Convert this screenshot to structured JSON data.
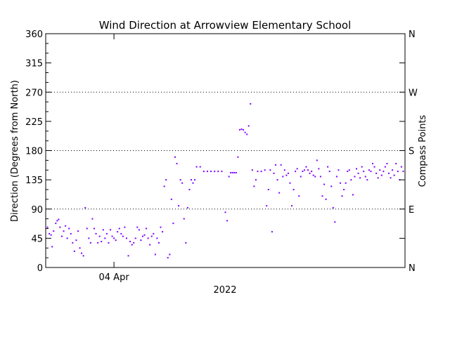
{
  "chart_data": {
    "type": "scatter",
    "title": "Wind Direction at Arrowview Elementary School",
    "ylabel": "Direction (Degrees from North)",
    "y2label": "Compass Points",
    "xlabel": "2022",
    "ylim": [
      0,
      360
    ],
    "yticks": [
      "0",
      "45",
      "90",
      "135",
      "180",
      "225",
      "270",
      "315",
      "360"
    ],
    "y2ticks": [
      {
        "label": "N",
        "value": 0
      },
      {
        "label": "E",
        "value": 90
      },
      {
        "label": "S",
        "value": 180
      },
      {
        "label": "W",
        "value": 270
      },
      {
        "label": "N",
        "value": 360
      }
    ],
    "xticks": [
      {
        "label": "04 Apr",
        "t": 0.19
      }
    ],
    "grid": "dotted lines at E, S, W",
    "series_color": "#8000ff",
    "points": [
      [
        0.005,
        62
      ],
      [
        0.01,
        52
      ],
      [
        0.015,
        50
      ],
      [
        0.018,
        32
      ],
      [
        0.022,
        56
      ],
      [
        0.028,
        68
      ],
      [
        0.032,
        72
      ],
      [
        0.036,
        74
      ],
      [
        0.04,
        62
      ],
      [
        0.045,
        48
      ],
      [
        0.05,
        56
      ],
      [
        0.055,
        64
      ],
      [
        0.06,
        45
      ],
      [
        0.065,
        60
      ],
      [
        0.07,
        52
      ],
      [
        0.075,
        38
      ],
      [
        0.08,
        25
      ],
      [
        0.085,
        42
      ],
      [
        0.09,
        56
      ],
      [
        0.095,
        30
      ],
      [
        0.1,
        22
      ],
      [
        0.105,
        18
      ],
      [
        0.11,
        92
      ],
      [
        0.115,
        60
      ],
      [
        0.12,
        45
      ],
      [
        0.125,
        38
      ],
      [
        0.13,
        75
      ],
      [
        0.135,
        60
      ],
      [
        0.14,
        52
      ],
      [
        0.145,
        38
      ],
      [
        0.15,
        48
      ],
      [
        0.155,
        40
      ],
      [
        0.16,
        58
      ],
      [
        0.165,
        45
      ],
      [
        0.17,
        52
      ],
      [
        0.175,
        38
      ],
      [
        0.18,
        58
      ],
      [
        0.185,
        48
      ],
      [
        0.19,
        45
      ],
      [
        0.195,
        42
      ],
      [
        0.2,
        55
      ],
      [
        0.205,
        60
      ],
      [
        0.21,
        52
      ],
      [
        0.215,
        48
      ],
      [
        0.22,
        62
      ],
      [
        0.225,
        45
      ],
      [
        0.23,
        18
      ],
      [
        0.235,
        40
      ],
      [
        0.24,
        35
      ],
      [
        0.245,
        38
      ],
      [
        0.25,
        45
      ],
      [
        0.255,
        62
      ],
      [
        0.26,
        58
      ],
      [
        0.265,
        42
      ],
      [
        0.27,
        48
      ],
      [
        0.275,
        50
      ],
      [
        0.28,
        60
      ],
      [
        0.285,
        45
      ],
      [
        0.29,
        35
      ],
      [
        0.295,
        48
      ],
      [
        0.3,
        52
      ],
      [
        0.305,
        20
      ],
      [
        0.31,
        45
      ],
      [
        0.315,
        38
      ],
      [
        0.32,
        62
      ],
      [
        0.325,
        55
      ],
      [
        0.33,
        125
      ],
      [
        0.335,
        135
      ],
      [
        0.34,
        15
      ],
      [
        0.345,
        20
      ],
      [
        0.35,
        105
      ],
      [
        0.355,
        68
      ],
      [
        0.36,
        170
      ],
      [
        0.365,
        160
      ],
      [
        0.37,
        95
      ],
      [
        0.375,
        135
      ],
      [
        0.38,
        130
      ],
      [
        0.385,
        75
      ],
      [
        0.39,
        38
      ],
      [
        0.395,
        92
      ],
      [
        0.4,
        120
      ],
      [
        0.405,
        135
      ],
      [
        0.41,
        130
      ],
      [
        0.415,
        135
      ],
      [
        0.42,
        155
      ],
      [
        0.43,
        155
      ],
      [
        0.44,
        148
      ],
      [
        0.45,
        148
      ],
      [
        0.46,
        148
      ],
      [
        0.47,
        148
      ],
      [
        0.48,
        148
      ],
      [
        0.49,
        148
      ],
      [
        0.5,
        85
      ],
      [
        0.505,
        72
      ],
      [
        0.51,
        140
      ],
      [
        0.515,
        146
      ],
      [
        0.52,
        146
      ],
      [
        0.525,
        146
      ],
      [
        0.53,
        146
      ],
      [
        0.535,
        170
      ],
      [
        0.54,
        212
      ],
      [
        0.545,
        213
      ],
      [
        0.55,
        212
      ],
      [
        0.555,
        208
      ],
      [
        0.56,
        205
      ],
      [
        0.565,
        218
      ],
      [
        0.57,
        252
      ],
      [
        0.575,
        150
      ],
      [
        0.58,
        125
      ],
      [
        0.585,
        135
      ],
      [
        0.59,
        148
      ],
      [
        0.6,
        148
      ],
      [
        0.61,
        150
      ],
      [
        0.615,
        95
      ],
      [
        0.62,
        120
      ],
      [
        0.625,
        150
      ],
      [
        0.63,
        55
      ],
      [
        0.635,
        145
      ],
      [
        0.64,
        158
      ],
      [
        0.645,
        135
      ],
      [
        0.65,
        115
      ],
      [
        0.655,
        158
      ],
      [
        0.66,
        140
      ],
      [
        0.665,
        150
      ],
      [
        0.67,
        142
      ],
      [
        0.675,
        145
      ],
      [
        0.68,
        130
      ],
      [
        0.685,
        95
      ],
      [
        0.69,
        120
      ],
      [
        0.695,
        148
      ],
      [
        0.7,
        152
      ],
      [
        0.705,
        110
      ],
      [
        0.71,
        140
      ],
      [
        0.715,
        148
      ],
      [
        0.72,
        150
      ],
      [
        0.725,
        155
      ],
      [
        0.73,
        150
      ],
      [
        0.735,
        145
      ],
      [
        0.74,
        148
      ],
      [
        0.745,
        142
      ],
      [
        0.75,
        140
      ],
      [
        0.755,
        165
      ],
      [
        0.76,
        152
      ],
      [
        0.765,
        140
      ],
      [
        0.77,
        110
      ],
      [
        0.775,
        128
      ],
      [
        0.78,
        105
      ],
      [
        0.785,
        155
      ],
      [
        0.79,
        148
      ],
      [
        0.795,
        125
      ],
      [
        0.8,
        92
      ],
      [
        0.805,
        70
      ],
      [
        0.81,
        140
      ],
      [
        0.815,
        150
      ],
      [
        0.82,
        130
      ],
      [
        0.825,
        110
      ],
      [
        0.83,
        120
      ],
      [
        0.835,
        130
      ],
      [
        0.84,
        148
      ],
      [
        0.845,
        150
      ],
      [
        0.85,
        135
      ],
      [
        0.855,
        112
      ],
      [
        0.86,
        140
      ],
      [
        0.865,
        152
      ],
      [
        0.87,
        145
      ],
      [
        0.875,
        138
      ],
      [
        0.88,
        155
      ],
      [
        0.885,
        148
      ],
      [
        0.89,
        140
      ],
      [
        0.895,
        135
      ],
      [
        0.9,
        150
      ],
      [
        0.905,
        148
      ],
      [
        0.91,
        160
      ],
      [
        0.915,
        155
      ],
      [
        0.92,
        145
      ],
      [
        0.925,
        138
      ],
      [
        0.93,
        150
      ],
      [
        0.935,
        142
      ],
      [
        0.94,
        148
      ],
      [
        0.945,
        155
      ],
      [
        0.95,
        160
      ],
      [
        0.955,
        145
      ],
      [
        0.96,
        138
      ],
      [
        0.965,
        150
      ],
      [
        0.97,
        142
      ],
      [
        0.975,
        160
      ],
      [
        0.98,
        148
      ],
      [
        0.985,
        135
      ],
      [
        0.99,
        155
      ],
      [
        0.995,
        148
      ]
    ]
  }
}
